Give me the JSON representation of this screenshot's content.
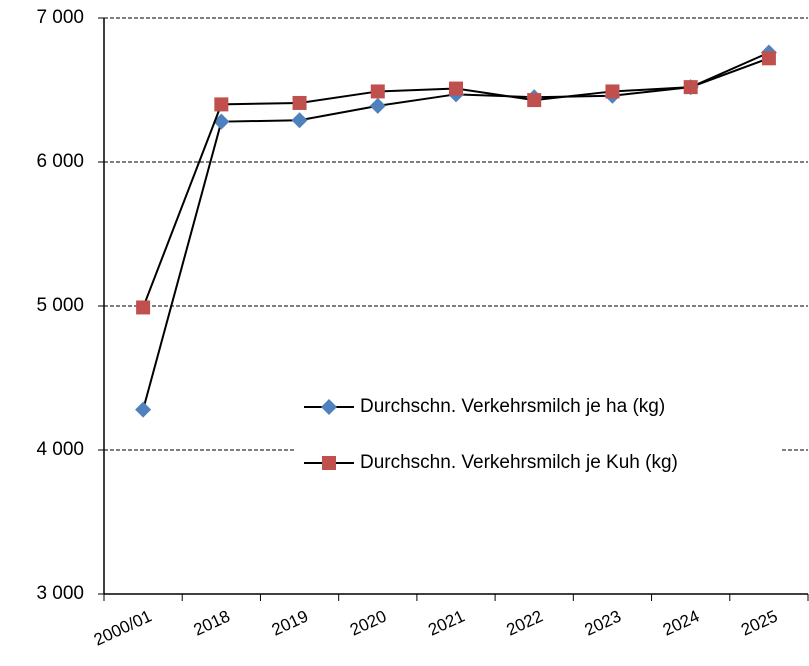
{
  "chart_data": {
    "type": "line",
    "categories": [
      "2000/01",
      "2018",
      "2019",
      "2020",
      "2021",
      "2022",
      "2023",
      "2024",
      "2025"
    ],
    "series": [
      {
        "name": "Durchschn. Verkehrsmilch je ha (kg)",
        "color": "#4f81bd",
        "marker": "diamond",
        "values": [
          4280,
          6280,
          6290,
          6390,
          6470,
          6450,
          6460,
          6520,
          6760
        ]
      },
      {
        "name": "Durchschn. Verkehrsmilch je Kuh (kg)",
        "color": "#c0504d",
        "marker": "square",
        "values": [
          4990,
          6400,
          6410,
          6490,
          6510,
          6430,
          6490,
          6520,
          6720
        ]
      }
    ],
    "ylim": [
      3000,
      7000
    ],
    "yticks": [
      {
        "value": 3000,
        "label": "3 000"
      },
      {
        "value": 4000,
        "label": "4 000"
      },
      {
        "value": 5000,
        "label": "5 000"
      },
      {
        "value": 6000,
        "label": "6 000"
      },
      {
        "value": 7000,
        "label": "7 000"
      }
    ],
    "grid": true,
    "legend": "right"
  }
}
